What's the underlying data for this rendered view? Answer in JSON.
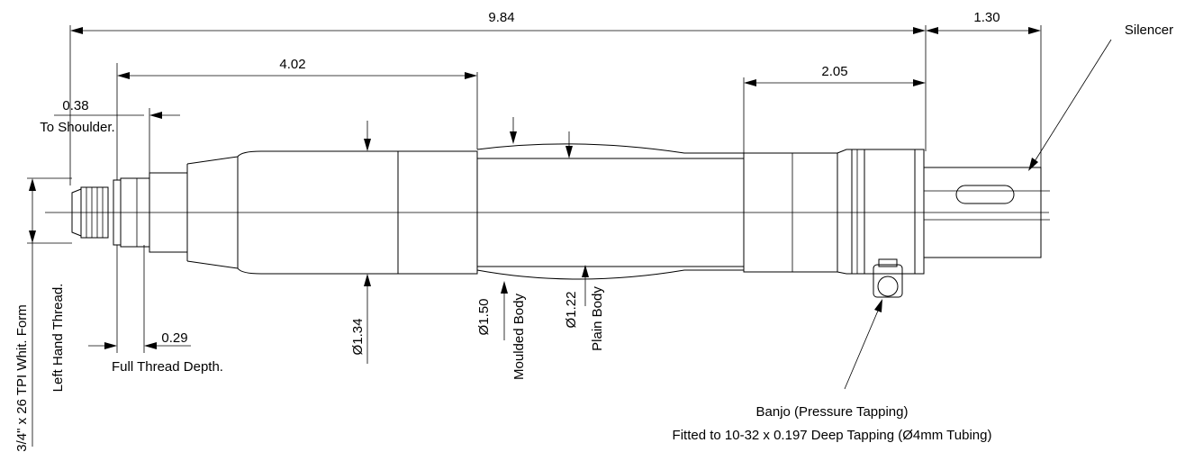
{
  "dimensions": {
    "overall_length": "9.84",
    "silencer_length": "1.30",
    "moulded_length": "4.02",
    "body_end_length": "2.05",
    "shoulder_value": "0.38",
    "shoulder_label": "To Shoulder.",
    "thread_depth_value": "0.29",
    "thread_depth_label": "Full Thread Depth.",
    "dia_front": "Ø1.34",
    "dia_moulded": "Ø1.50",
    "dia_moulded_label": "Moulded Body",
    "dia_plain": "Ø1.22",
    "dia_plain_label": "Plain Body"
  },
  "labels": {
    "silencer": "Silencer",
    "thread_spec": "3/4\" x 26 TPI Whit. Form",
    "thread_hand": "Left Hand Thread.",
    "banjo_title": "Banjo (Pressure Tapping)",
    "banjo_detail": "Fitted to 10-32 x 0.197 Deep Tapping (Ø4mm Tubing)"
  }
}
